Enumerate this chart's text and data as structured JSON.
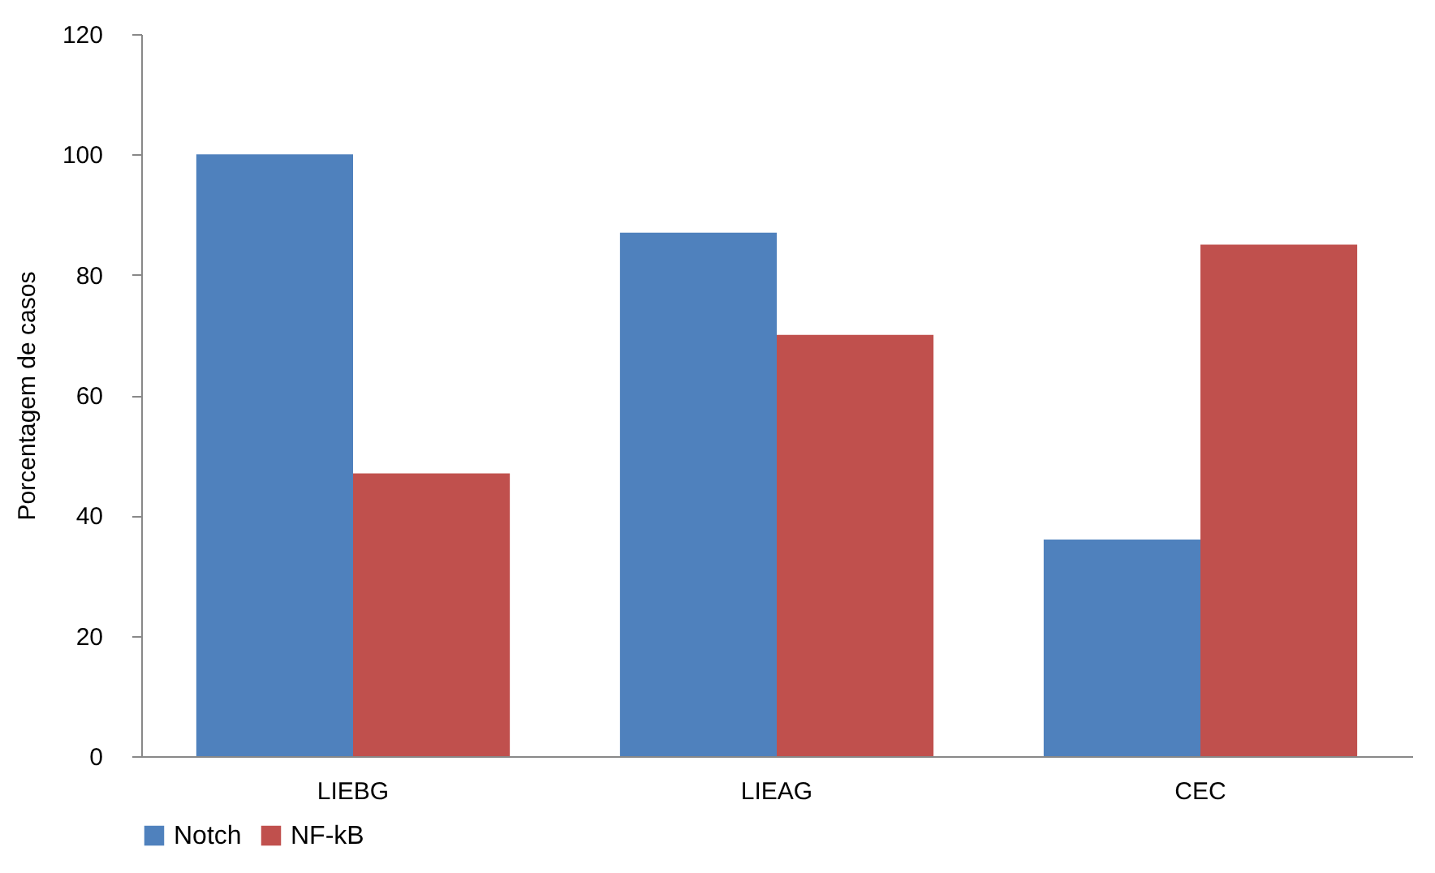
{
  "chart_data": {
    "type": "bar",
    "ylabel": "Porcentagem de casos",
    "categories": [
      "LIEBG",
      "LIEAG",
      "CEC"
    ],
    "series": [
      {
        "name": "Notch",
        "color": "#4f81bd",
        "values": [
          100,
          87,
          36
        ]
      },
      {
        "name": "NF-kB",
        "color": "#c0504d",
        "values": [
          47,
          70,
          85
        ]
      }
    ],
    "ylim": [
      0,
      120
    ],
    "yticks": [
      0,
      20,
      40,
      60,
      80,
      100,
      120
    ],
    "legend": "bottom"
  }
}
